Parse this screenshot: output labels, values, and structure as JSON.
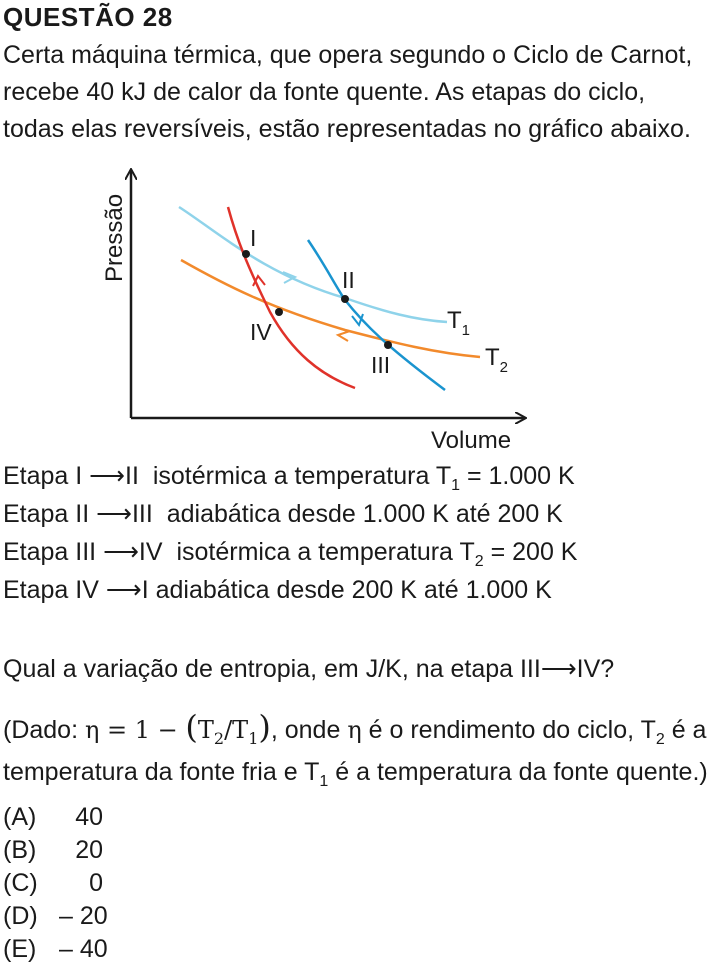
{
  "question": {
    "title": "QUESTÃO 28",
    "intro_lines": [
      "Certa máquina térmica, que opera segundo o Ciclo de Carnot,",
      "recebe 40 kJ de calor da fonte quente. As etapas do ciclo,",
      "todas elas reversíveis, estão representadas no gráfico abaixo."
    ]
  },
  "diagram": {
    "y_axis_label": "Pressão",
    "x_axis_label": "Volume",
    "points": [
      "I",
      "II",
      "III",
      "IV"
    ],
    "isotherm_high": "T",
    "isotherm_high_sub": "1",
    "isotherm_low": "T",
    "isotherm_low_sub": "2",
    "colors": {
      "isotherm_high": "#8fd3ea",
      "isotherm_low": "#f28a2c",
      "adiabat_left": "#e0322a",
      "adiabat_right": "#1a94cf",
      "axes": "#1a1a1a"
    }
  },
  "steps": [
    {
      "from": "Etapa I",
      "to": "II",
      "text_a": "isotérmica a temperatura T",
      "sub": "1",
      "text_b": " = 1.000 K"
    },
    {
      "from": "Etapa II",
      "to": "III",
      "text_a": "adiabática desde 1.000 K até 200 K",
      "sub": "",
      "text_b": ""
    },
    {
      "from": "Etapa III",
      "to": "IV",
      "text_a": "isotérmica a temperatura T",
      "sub": "2",
      "text_b": " = 200 K"
    },
    {
      "from": "Etapa IV",
      "to": "I",
      "text_a": "adiabática desde 200 K até 1.000 K",
      "sub": "",
      "text_b": ""
    }
  ],
  "ask": {
    "text": "Qual a variação de entropia, em J/K, na etapa III",
    "text_end": "IV?"
  },
  "given": {
    "prefix": "(Dado: ",
    "eta": "η",
    "formula_a": " = 1 − ",
    "formula_t2": "T",
    "formula_t2_sub": "2",
    "formula_t1": "T",
    "formula_t1_sub": "1",
    "mid": ", onde ",
    "mid2": " é o rendimento do ciclo, T",
    "mid2_sub": "2",
    "mid3": " é a",
    "line2_a": "temperatura da fonte fria e T",
    "line2_sub": "1",
    "line2_b": " é a temperatura da fonte quente.)"
  },
  "options": [
    {
      "letter": "(A)",
      "value": "40"
    },
    {
      "letter": "(B)",
      "value": "20"
    },
    {
      "letter": "(C)",
      "value": "0"
    },
    {
      "letter": "(D)",
      "value": "– 20"
    },
    {
      "letter": "(E)",
      "value": "– 40"
    }
  ]
}
